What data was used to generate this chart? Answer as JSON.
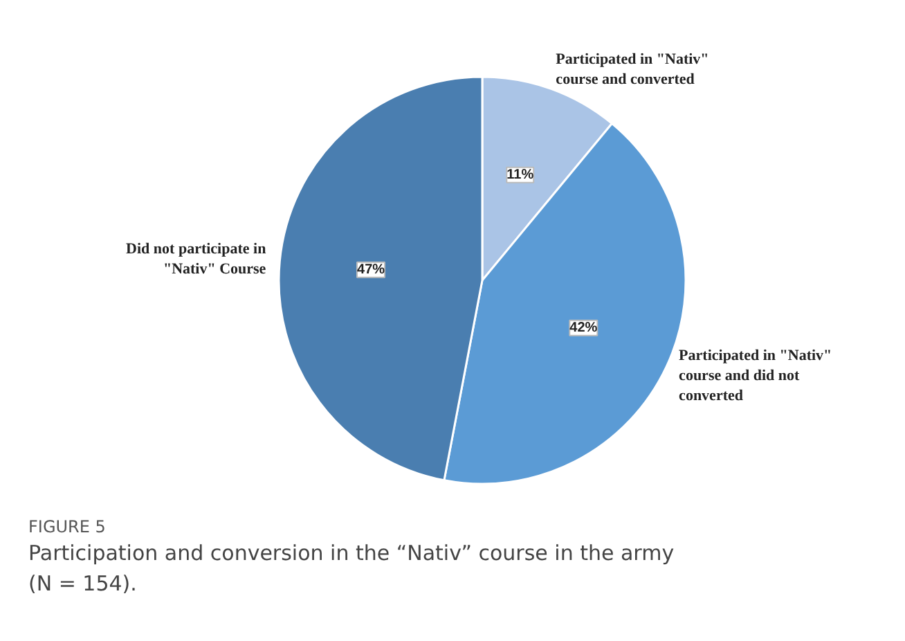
{
  "chart_data": {
    "type": "pie",
    "categories": [
      "Participated in \"Nativ\" course and converted",
      "Participated in \"Nativ\" course and did not converted",
      "Did not participate in \"Nativ\" Course"
    ],
    "values": [
      11,
      42,
      47
    ],
    "colors": [
      "#aac4e6",
      "#5b9bd5",
      "#4a7eb0"
    ],
    "value_labels": [
      "11%",
      "42%",
      "47%"
    ],
    "annotations": [
      "FIGURE 5",
      "Participation and conversion in the “Nativ” course in the army (N = 154)."
    ]
  }
}
